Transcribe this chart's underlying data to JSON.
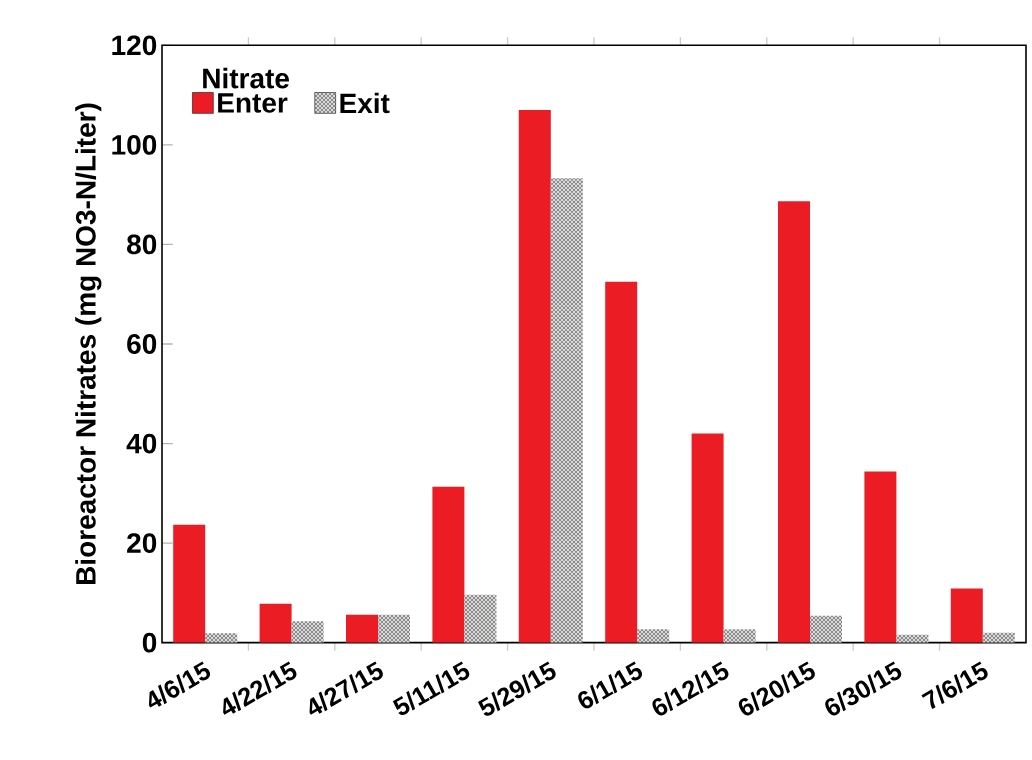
{
  "chart_data": {
    "type": "bar",
    "ylabel": "Bioreactor Nitrates (mg NO3-N/Liter)",
    "legend_title": "Nitrate",
    "legend": "top left",
    "grid": false,
    "categories": [
      "4/6/15",
      "4/22/15",
      "4/27/15",
      "5/11/15",
      "5/29/15",
      "6/1/15",
      "6/12/15",
      "6/20/15",
      "6/30/15",
      "7/6/15"
    ],
    "ylim": [
      0,
      120
    ],
    "yticks": [
      0,
      20,
      40,
      60,
      80,
      100,
      120
    ],
    "series": [
      {
        "name": "Enter",
        "color": "#ec1c24",
        "values": [
          23.7,
          7.8,
          5.6,
          31.3,
          107.0,
          72.5,
          42.0,
          88.7,
          34.4,
          10.9
        ]
      },
      {
        "name": "Exit",
        "color": "#d9d9d9",
        "values": [
          1.9,
          4.3,
          5.6,
          9.6,
          93.3,
          2.7,
          2.7,
          5.4,
          1.6,
          2.0
        ]
      }
    ]
  }
}
